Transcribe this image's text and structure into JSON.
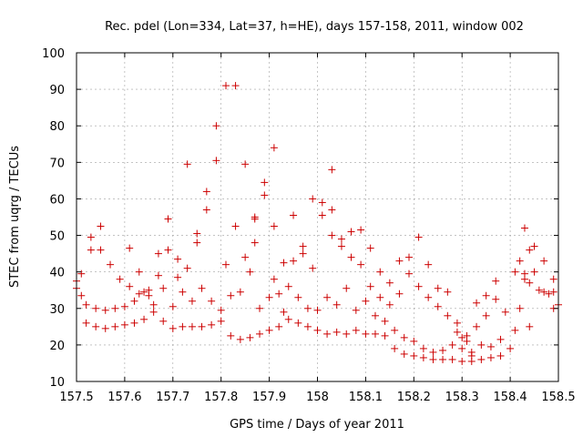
{
  "chart_data": {
    "type": "scatter",
    "title": "Rec. pdel (Lon=334, Lat=37, h=HE), days 157-158, 2011, window 002",
    "xlabel": "GPS time / Days of year 2011",
    "ylabel": "STEC from uqrg / TECUs",
    "xlim": [
      157.5,
      158.5
    ],
    "ylim": [
      10,
      100
    ],
    "xticks": [
      157.5,
      157.6,
      157.7,
      157.8,
      157.9,
      158,
      158.1,
      158.2,
      158.3,
      158.4,
      158.5
    ],
    "xtick_labels": [
      "157.5",
      "157.6",
      "157.7",
      "157.8",
      "157.9",
      "158",
      "158.1",
      "158.2",
      "158.3",
      "158.4",
      "158.5"
    ],
    "yticks": [
      10,
      20,
      30,
      40,
      50,
      60,
      70,
      80,
      90,
      100
    ],
    "ytick_labels": [
      "10",
      "20",
      "30",
      "40",
      "50",
      "60",
      "70",
      "80",
      "90",
      "100"
    ],
    "grid": true,
    "marker": "plus",
    "color": "#cc0000",
    "series": [
      {
        "points": [
          [
            157.5,
            37.5
          ],
          [
            157.5,
            35.5
          ],
          [
            157.51,
            39.5
          ],
          [
            157.51,
            33.5
          ],
          [
            157.52,
            26.0
          ],
          [
            157.52,
            31.0
          ],
          [
            157.53,
            49.5
          ],
          [
            157.53,
            46.0
          ],
          [
            157.54,
            25.0
          ],
          [
            157.54,
            30.0
          ],
          [
            157.55,
            52.5
          ],
          [
            157.55,
            46.0
          ],
          [
            157.56,
            24.5
          ],
          [
            157.56,
            29.5
          ],
          [
            157.57,
            42.0
          ],
          [
            157.58,
            25.0
          ],
          [
            157.58,
            30.0
          ],
          [
            157.59,
            38.0
          ],
          [
            157.6,
            25.5
          ],
          [
            157.6,
            30.5
          ],
          [
            157.61,
            46.5
          ],
          [
            157.61,
            36.0
          ],
          [
            157.62,
            26.0
          ],
          [
            157.62,
            32.0
          ],
          [
            157.63,
            40.0
          ],
          [
            157.63,
            34.0
          ],
          [
            157.64,
            27.0
          ],
          [
            157.64,
            34.5
          ],
          [
            157.65,
            33.5
          ],
          [
            157.65,
            35.0
          ],
          [
            157.66,
            29.0
          ],
          [
            157.66,
            31.0
          ],
          [
            157.67,
            39.0
          ],
          [
            157.67,
            45.0
          ],
          [
            157.68,
            26.5
          ],
          [
            157.68,
            35.5
          ],
          [
            157.69,
            54.5
          ],
          [
            157.69,
            46.0
          ],
          [
            157.7,
            24.5
          ],
          [
            157.7,
            30.5
          ],
          [
            157.71,
            38.5
          ],
          [
            157.71,
            43.5
          ],
          [
            157.72,
            25.0
          ],
          [
            157.72,
            34.5
          ],
          [
            157.73,
            69.5
          ],
          [
            157.73,
            41.0
          ],
          [
            157.74,
            25.0
          ],
          [
            157.74,
            32.0
          ],
          [
            157.75,
            50.5
          ],
          [
            157.75,
            48.0
          ],
          [
            157.76,
            25.0
          ],
          [
            157.76,
            35.5
          ],
          [
            157.77,
            62.0
          ],
          [
            157.77,
            57.0
          ],
          [
            157.78,
            25.5
          ],
          [
            157.78,
            32.0
          ],
          [
            157.79,
            80.0
          ],
          [
            157.79,
            70.5
          ],
          [
            157.8,
            29.5
          ],
          [
            157.8,
            26.5
          ],
          [
            157.81,
            91.0
          ],
          [
            157.81,
            42.0
          ],
          [
            157.82,
            22.5
          ],
          [
            157.82,
            33.5
          ],
          [
            157.83,
            91.0
          ],
          [
            157.83,
            52.5
          ],
          [
            157.84,
            21.5
          ],
          [
            157.84,
            34.5
          ],
          [
            157.85,
            69.5
          ],
          [
            157.85,
            44.0
          ],
          [
            157.86,
            22.0
          ],
          [
            157.86,
            40.0
          ],
          [
            157.87,
            55.0
          ],
          [
            157.87,
            48.0
          ],
          [
            157.87,
            54.5
          ],
          [
            157.88,
            23.0
          ],
          [
            157.88,
            30.0
          ],
          [
            157.89,
            64.5
          ],
          [
            157.89,
            61.0
          ],
          [
            157.9,
            24.0
          ],
          [
            157.9,
            33.0
          ],
          [
            157.91,
            74.0
          ],
          [
            157.91,
            52.5
          ],
          [
            157.91,
            38.0
          ],
          [
            157.92,
            25.0
          ],
          [
            157.92,
            34.0
          ],
          [
            157.93,
            42.5
          ],
          [
            157.93,
            29.0
          ],
          [
            157.94,
            27.0
          ],
          [
            157.94,
            36.0
          ],
          [
            157.95,
            55.5
          ],
          [
            157.95,
            43.0
          ],
          [
            157.96,
            26.0
          ],
          [
            157.96,
            33.0
          ],
          [
            157.97,
            47.0
          ],
          [
            157.97,
            45.0
          ],
          [
            157.98,
            25.0
          ],
          [
            157.98,
            30.0
          ],
          [
            157.99,
            60.0
          ],
          [
            157.99,
            41.0
          ],
          [
            158.0,
            24.0
          ],
          [
            158.0,
            29.5
          ],
          [
            158.01,
            59.0
          ],
          [
            158.01,
            55.5
          ],
          [
            158.02,
            23.0
          ],
          [
            158.02,
            33.0
          ],
          [
            158.03,
            68.0
          ],
          [
            158.03,
            57.0
          ],
          [
            158.03,
            50.0
          ],
          [
            158.04,
            23.5
          ],
          [
            158.04,
            31.0
          ],
          [
            158.05,
            49.0
          ],
          [
            158.05,
            47.0
          ],
          [
            158.06,
            23.0
          ],
          [
            158.06,
            35.5
          ],
          [
            158.07,
            51.0
          ],
          [
            158.07,
            44.0
          ],
          [
            158.08,
            24.0
          ],
          [
            158.08,
            29.5
          ],
          [
            158.09,
            51.5
          ],
          [
            158.09,
            42.0
          ],
          [
            158.1,
            23.0
          ],
          [
            158.1,
            32.0
          ],
          [
            158.11,
            46.5
          ],
          [
            158.11,
            36.0
          ],
          [
            158.12,
            23.0
          ],
          [
            158.12,
            28.0
          ],
          [
            158.13,
            40.0
          ],
          [
            158.13,
            33.0
          ],
          [
            158.14,
            22.5
          ],
          [
            158.14,
            26.5
          ],
          [
            158.15,
            37.0
          ],
          [
            158.15,
            31.0
          ],
          [
            158.16,
            19.0
          ],
          [
            158.16,
            24.0
          ],
          [
            158.17,
            43.0
          ],
          [
            158.17,
            34.0
          ],
          [
            158.18,
            17.5
          ],
          [
            158.18,
            22.0
          ],
          [
            158.19,
            44.0
          ],
          [
            158.19,
            39.5
          ],
          [
            158.2,
            17.0
          ],
          [
            158.2,
            21.0
          ],
          [
            158.21,
            49.5
          ],
          [
            158.21,
            36.0
          ],
          [
            158.22,
            16.5
          ],
          [
            158.22,
            19.0
          ],
          [
            158.23,
            42.0
          ],
          [
            158.23,
            33.0
          ],
          [
            158.24,
            16.0
          ],
          [
            158.24,
            18.0
          ],
          [
            158.25,
            35.5
          ],
          [
            158.25,
            30.5
          ],
          [
            158.26,
            16.0
          ],
          [
            158.26,
            18.5
          ],
          [
            158.27,
            34.5
          ],
          [
            158.27,
            28.0
          ],
          [
            158.28,
            16.0
          ],
          [
            158.28,
            20.0
          ],
          [
            158.29,
            26.0
          ],
          [
            158.29,
            23.5
          ],
          [
            158.3,
            15.5
          ],
          [
            158.3,
            19.0
          ],
          [
            158.31,
            22.5
          ],
          [
            158.31,
            21.0
          ],
          [
            158.32,
            15.5
          ],
          [
            158.32,
            18.0
          ],
          [
            158.33,
            31.5
          ],
          [
            158.33,
            25.0
          ],
          [
            158.34,
            16.0
          ],
          [
            158.34,
            20.0
          ],
          [
            158.35,
            33.5
          ],
          [
            158.35,
            28.0
          ],
          [
            158.36,
            16.5
          ],
          [
            158.36,
            19.5
          ],
          [
            158.37,
            32.5
          ],
          [
            158.37,
            37.5
          ],
          [
            158.38,
            17.0
          ],
          [
            158.38,
            21.5
          ],
          [
            158.39,
            29.0
          ],
          [
            158.4,
            19.0
          ],
          [
            158.41,
            40.0
          ],
          [
            158.42,
            30.0
          ],
          [
            158.43,
            38.0
          ],
          [
            158.45,
            47.0
          ],
          [
            158.41,
            24.0
          ],
          [
            158.44,
            25.0
          ],
          [
            158.3,
            22.0
          ],
          [
            158.32,
            17.0
          ]
        ]
      },
      {
        "points": [
          [
            158.42,
            43.0
          ],
          [
            158.43,
            52.0
          ],
          [
            158.43,
            39.5
          ],
          [
            158.44,
            46.0
          ],
          [
            158.44,
            37.0
          ],
          [
            158.45,
            40.0
          ],
          [
            158.46,
            35.0
          ],
          [
            158.47,
            34.5
          ],
          [
            158.47,
            43.0
          ],
          [
            158.48,
            34.0
          ],
          [
            158.49,
            38.0
          ],
          [
            158.49,
            34.5
          ],
          [
            158.5,
            31.0
          ],
          [
            158.49,
            30.0
          ]
        ]
      }
    ]
  }
}
